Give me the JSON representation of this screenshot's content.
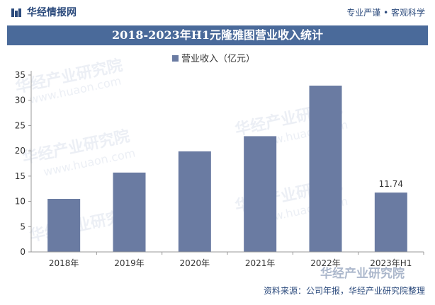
{
  "header": {
    "brand": "华经情报网",
    "tagline": "专业严谨 • 客观科学"
  },
  "title": "2018-2023年H1元隆雅图营业收入统计",
  "watermark": {
    "text": "华经产业研究院",
    "url": "www.huaon.com",
    "brand": "华经产业研究院"
  },
  "source": "资料来源：公司年报，华经产业研究院整理",
  "chart_data": {
    "type": "bar",
    "categories": [
      "2018年",
      "2019年",
      "2020年",
      "2021年",
      "2022年",
      "2023年H1"
    ],
    "series": [
      {
        "name": "营业收入（亿元）",
        "values": [
          10.5,
          15.7,
          19.9,
          22.9,
          32.9,
          11.74
        ]
      }
    ],
    "data_labels": [
      null,
      null,
      null,
      null,
      null,
      "11.74"
    ],
    "ylim": [
      0,
      35
    ],
    "yticks": [
      0,
      5,
      10,
      15,
      20,
      25,
      30,
      35
    ],
    "legend": "top",
    "grid": false,
    "colors": {
      "bar": "#6a7ba2",
      "axis": "#999999"
    }
  }
}
